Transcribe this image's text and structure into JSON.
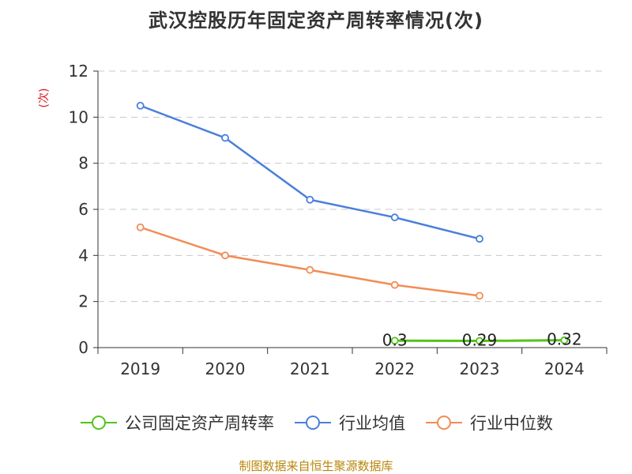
{
  "chart_data": {
    "type": "line",
    "title": "武汉控股历年固定资产周转率情况(次)",
    "ylabel": "(次)",
    "xlabel": "",
    "categories": [
      "2019",
      "2020",
      "2021",
      "2022",
      "2023",
      "2024"
    ],
    "ylim": [
      0,
      12
    ],
    "yticks": [
      0,
      2,
      4,
      6,
      8,
      10,
      12
    ],
    "grid": true,
    "legend_position": "bottom",
    "series": [
      {
        "name": "公司固定资产周转率",
        "color": "#52c41a",
        "values": [
          null,
          null,
          null,
          0.3,
          0.29,
          0.32
        ],
        "labels": [
          "",
          "",
          "",
          "0.3",
          "0.29",
          "0.32"
        ]
      },
      {
        "name": "行业均值",
        "color": "#4a7fdb",
        "values": [
          10.5,
          9.1,
          6.42,
          5.65,
          4.72,
          null
        ],
        "labels": []
      },
      {
        "name": "行业中位数",
        "color": "#f28c55",
        "values": [
          5.22,
          4.0,
          3.37,
          2.72,
          2.25,
          null
        ],
        "labels": []
      }
    ]
  },
  "source": "制图数据来自恒生聚源数据库"
}
